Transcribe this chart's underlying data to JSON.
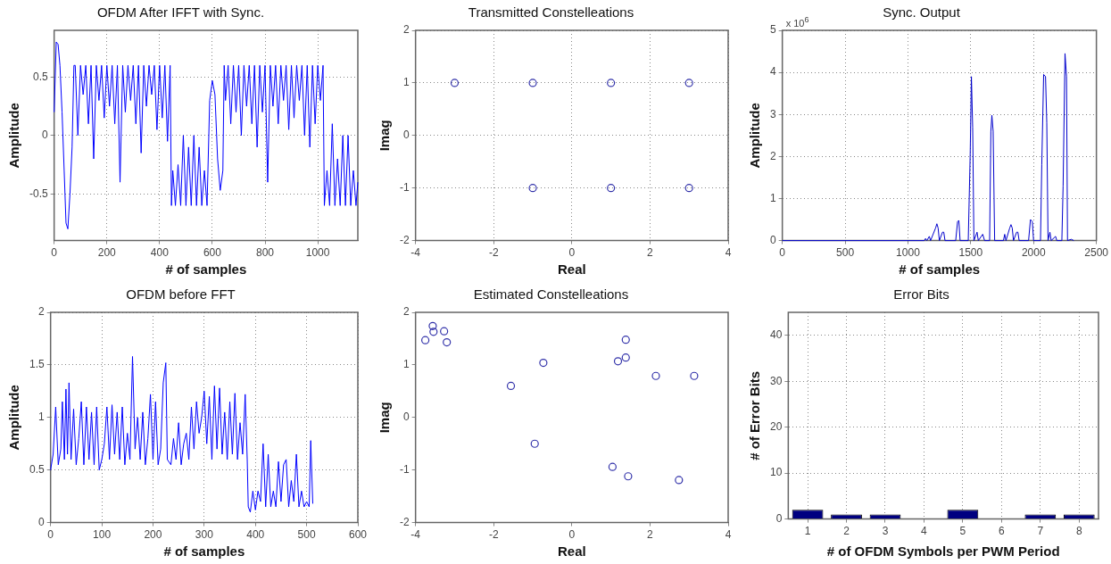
{
  "chart_data": [
    {
      "type": "line",
      "title": "OFDM After IFFT with Sync.",
      "xlabel": "# of samples",
      "ylabel": "Amplitude",
      "color": "#0000ff",
      "marker": "none",
      "grid": true,
      "xlim": [
        0,
        1152
      ],
      "ylim": [
        -0.9,
        0.9
      ],
      "xticks": [
        0,
        200,
        400,
        600,
        800,
        1000
      ],
      "yticks": [
        -0.5,
        0,
        0.5
      ],
      "x": [
        0,
        8,
        15,
        22,
        30,
        38,
        45,
        52,
        60,
        68,
        75,
        80,
        90,
        100,
        110,
        120,
        130,
        140,
        150,
        160,
        170,
        180,
        190,
        200,
        210,
        220,
        230,
        240,
        250,
        260,
        270,
        280,
        290,
        300,
        310,
        320,
        330,
        340,
        350,
        360,
        370,
        380,
        390,
        400,
        410,
        420,
        430,
        440,
        445,
        450,
        460,
        470,
        480,
        490,
        500,
        510,
        520,
        530,
        540,
        550,
        560,
        570,
        580,
        590,
        600,
        610,
        620,
        630,
        640,
        645,
        650,
        660,
        670,
        680,
        690,
        700,
        710,
        720,
        730,
        740,
        750,
        760,
        770,
        780,
        790,
        800,
        810,
        820,
        830,
        840,
        850,
        860,
        870,
        880,
        890,
        900,
        910,
        920,
        930,
        940,
        950,
        960,
        970,
        980,
        990,
        1000,
        1010,
        1020,
        1025,
        1035,
        1045,
        1055,
        1065,
        1075,
        1085,
        1095,
        1105,
        1115,
        1125,
        1135,
        1145,
        1152
      ],
      "values": [
        0.2,
        0.8,
        0.78,
        0.6,
        0.2,
        -0.3,
        -0.75,
        -0.8,
        -0.5,
        -0.1,
        0.6,
        0.6,
        0.0,
        0.6,
        0.35,
        0.6,
        0.1,
        0.6,
        -0.2,
        0.6,
        0.3,
        0.6,
        0.15,
        0.6,
        0.25,
        0.6,
        0.1,
        0.6,
        -0.4,
        0.6,
        0.2,
        0.6,
        0.3,
        0.6,
        0.1,
        0.6,
        -0.15,
        0.6,
        0.25,
        0.6,
        0.35,
        0.6,
        0.05,
        0.6,
        0.15,
        0.6,
        -0.05,
        0.6,
        -0.6,
        -0.3,
        -0.6,
        -0.25,
        -0.6,
        0.0,
        -0.6,
        -0.1,
        -0.6,
        0.0,
        -0.6,
        -0.1,
        -0.6,
        -0.3,
        -0.6,
        0.3,
        0.47,
        0.35,
        -0.2,
        -0.47,
        -0.3,
        0.6,
        0.3,
        0.6,
        0.1,
        0.6,
        0.2,
        0.6,
        0.0,
        0.6,
        0.25,
        0.6,
        0.1,
        0.6,
        -0.1,
        0.6,
        0.2,
        0.6,
        -0.4,
        0.6,
        0.25,
        0.6,
        0.1,
        0.6,
        0.3,
        0.6,
        0.05,
        0.6,
        0.15,
        0.6,
        0.3,
        0.6,
        0.0,
        0.6,
        -0.1,
        0.6,
        0.1,
        0.6,
        0.3,
        0.6,
        -0.6,
        -0.3,
        -0.6,
        0.1,
        -0.6,
        -0.2,
        -0.6,
        0.0,
        -0.6,
        0.0,
        -0.6,
        -0.3,
        -0.6,
        -0.4
      ]
    },
    {
      "type": "scatter",
      "title": "Transmitted Constelleations",
      "xlabel": "Real",
      "ylabel": "Imag",
      "color": "#3333aa",
      "marker": "circle",
      "grid": true,
      "xlim": [
        -4,
        4
      ],
      "ylim": [
        -2,
        2
      ],
      "xticks": [
        -4,
        -2,
        0,
        2,
        4
      ],
      "yticks": [
        -2,
        -1,
        0,
        1,
        2
      ],
      "x": [
        -3,
        -1,
        1,
        3,
        -1,
        1,
        3
      ],
      "values": [
        1,
        1,
        1,
        1,
        -1,
        -1,
        -1
      ]
    },
    {
      "type": "line",
      "title": "Sync. Output",
      "xlabel": "# of samples",
      "ylabel": "Amplitude",
      "color": "#0000cc",
      "marker": "none",
      "grid": true,
      "xlim": [
        0,
        2500
      ],
      "ylim": [
        0,
        5
      ],
      "xticks": [
        0,
        500,
        1000,
        1500,
        2000,
        2500
      ],
      "yticks": [
        0,
        1,
        2,
        3,
        4,
        5
      ],
      "annotations": [
        "x 10$^{6}$"
      ],
      "x": [
        0,
        1130,
        1140,
        1150,
        1170,
        1180,
        1220,
        1230,
        1240,
        1250,
        1275,
        1285,
        1295,
        1380,
        1395,
        1405,
        1415,
        1480,
        1495,
        1505,
        1515,
        1525,
        1550,
        1560,
        1595,
        1610,
        1650,
        1660,
        1668,
        1678,
        1690,
        1760,
        1770,
        1780,
        1810,
        1820,
        1830,
        1840,
        1865,
        1875,
        1885,
        1960,
        1975,
        1990,
        2000,
        2055,
        2065,
        2080,
        2095,
        2105,
        2115,
        2130,
        2140,
        2175,
        2185,
        2225,
        2235,
        2250,
        2262,
        2270,
        2300,
        2320
      ],
      "values": [
        0,
        0,
        0.05,
        0,
        0.1,
        0,
        0.3,
        0.4,
        0.3,
        0,
        0.2,
        0.2,
        0,
        0,
        0.45,
        0.48,
        0,
        0,
        2.0,
        3.9,
        2.7,
        0,
        0.2,
        0,
        0.15,
        0,
        0,
        2.6,
        2.98,
        2.6,
        0,
        0,
        0.15,
        0,
        0.3,
        0.38,
        0.3,
        0,
        0.2,
        0.2,
        0,
        0,
        0.5,
        0.45,
        0,
        0,
        1.8,
        3.95,
        3.9,
        2.8,
        0,
        0.2,
        0,
        0.1,
        0,
        0,
        1.3,
        4.45,
        3.9,
        0,
        0.03,
        0
      ]
    },
    {
      "type": "line",
      "title": "OFDM before FFT",
      "xlabel": "# of samples",
      "ylabel": "Amplitude",
      "color": "#0000ff",
      "marker": "none",
      "grid": true,
      "xlim": [
        0,
        600
      ],
      "ylim": [
        0,
        2
      ],
      "xticks": [
        0,
        100,
        200,
        300,
        400,
        500,
        600
      ],
      "yticks": [
        0,
        0.5,
        1,
        1.5,
        2
      ],
      "x": [
        0,
        5,
        10,
        15,
        20,
        23,
        27,
        30,
        33,
        36,
        40,
        45,
        50,
        55,
        60,
        65,
        70,
        75,
        80,
        85,
        90,
        95,
        100,
        105,
        110,
        115,
        120,
        125,
        130,
        135,
        140,
        145,
        150,
        155,
        160,
        165,
        170,
        175,
        180,
        185,
        190,
        195,
        200,
        205,
        210,
        215,
        220,
        225,
        228,
        235,
        240,
        245,
        250,
        255,
        260,
        265,
        270,
        275,
        280,
        285,
        290,
        295,
        300,
        305,
        310,
        315,
        320,
        325,
        330,
        335,
        340,
        345,
        350,
        355,
        360,
        365,
        370,
        375,
        380,
        384,
        386,
        390,
        395,
        400,
        405,
        410,
        415,
        420,
        425,
        430,
        435,
        440,
        445,
        450,
        455,
        460,
        465,
        470,
        475,
        480,
        485,
        490,
        495,
        500,
        505,
        508,
        512
      ],
      "values": [
        0.5,
        0.65,
        1.1,
        0.55,
        0.7,
        1.15,
        0.6,
        1.27,
        0.65,
        1.33,
        0.6,
        1.08,
        0.55,
        0.8,
        1.15,
        0.55,
        1.1,
        0.6,
        1.05,
        0.55,
        1.1,
        0.5,
        0.6,
        0.75,
        1.1,
        0.6,
        1.12,
        0.65,
        1.05,
        0.6,
        1.1,
        0.55,
        0.85,
        0.6,
        1.58,
        0.7,
        1.0,
        0.6,
        1.05,
        0.55,
        0.8,
        1.22,
        0.6,
        1.15,
        0.55,
        0.7,
        1.33,
        1.52,
        0.6,
        0.55,
        0.8,
        0.6,
        0.95,
        0.55,
        0.75,
        0.85,
        0.6,
        1.1,
        0.7,
        1.15,
        0.85,
        1.0,
        1.25,
        0.75,
        1.2,
        0.6,
        1.3,
        0.7,
        1.28,
        0.65,
        1.05,
        0.6,
        1.15,
        0.65,
        1.23,
        0.6,
        0.95,
        0.65,
        1.22,
        0.6,
        0.15,
        0.1,
        0.3,
        0.12,
        0.3,
        0.2,
        0.75,
        0.15,
        0.65,
        0.15,
        0.3,
        0.15,
        0.58,
        0.2,
        0.55,
        0.6,
        0.15,
        0.4,
        0.2,
        0.65,
        0.15,
        0.3,
        0.15,
        0.2,
        0.15,
        0.78,
        0.18
      ]
    },
    {
      "type": "scatter",
      "title": "Estimated Constelleations",
      "xlabel": "Real",
      "ylabel": "Imag",
      "color": "#3333aa",
      "marker": "circle",
      "grid": false,
      "xlim": [
        -4,
        4
      ],
      "ylim": [
        -2,
        2
      ],
      "xticks": [
        -4,
        -2,
        0,
        2,
        4
      ],
      "yticks": [
        -2,
        -1,
        0,
        1,
        2
      ],
      "x": [
        -3.75,
        -3.56,
        -3.54,
        -3.27,
        -3.2,
        -1.56,
        -0.73,
        -0.95,
        1.18,
        1.38,
        1.38,
        2.15,
        3.13,
        1.04,
        1.44,
        2.74
      ],
      "values": [
        1.47,
        1.74,
        1.63,
        1.64,
        1.43,
        0.6,
        1.04,
        -0.5,
        1.07,
        1.14,
        1.48,
        0.79,
        0.79,
        -0.94,
        -1.12,
        -1.19
      ]
    },
    {
      "type": "bar",
      "title": "Error Bits",
      "xlabel": "# of OFDM Symbols per PWM Period",
      "ylabel": "# of Error Bits",
      "color": "#000080",
      "grid": true,
      "ylim": [
        0,
        45
      ],
      "yticks": [
        0,
        10,
        20,
        30,
        40
      ],
      "categories": [
        "1",
        "2",
        "3",
        "4",
        "5",
        "6",
        "7",
        "8"
      ],
      "values": [
        2,
        1,
        1,
        0,
        2,
        0,
        1,
        1
      ]
    }
  ]
}
